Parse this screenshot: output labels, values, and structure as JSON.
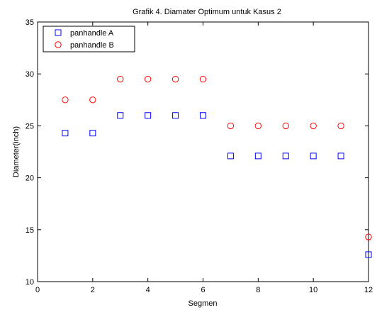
{
  "chart_data": {
    "type": "scatter",
    "title": "Grafik 4. Diamater Optimum untuk Kasus 2",
    "xlabel": "Segmen",
    "ylabel": "Diameter(inch)",
    "xlim": [
      0,
      12
    ],
    "ylim": [
      10,
      35
    ],
    "xticks": [
      0,
      2,
      4,
      6,
      8,
      10,
      12
    ],
    "yticks": [
      10,
      15,
      20,
      25,
      30,
      35
    ],
    "grid": false,
    "legend_position": "top-left",
    "series": [
      {
        "name": "panhandle A",
        "marker": "square",
        "color": "#0000ff",
        "x": [
          1,
          2,
          3,
          4,
          5,
          6,
          7,
          8,
          9,
          10,
          11,
          12
        ],
        "y": [
          24.3,
          24.3,
          26.0,
          26.0,
          26.0,
          26.0,
          22.1,
          22.1,
          22.1,
          22.1,
          22.1,
          12.6
        ]
      },
      {
        "name": "panhandle B",
        "marker": "circle",
        "color": "#ff0000",
        "x": [
          1,
          2,
          3,
          4,
          5,
          6,
          7,
          8,
          9,
          10,
          11,
          12
        ],
        "y": [
          27.5,
          27.5,
          29.5,
          29.5,
          29.5,
          29.5,
          25.0,
          25.0,
          25.0,
          25.0,
          25.0,
          14.3
        ]
      }
    ]
  }
}
